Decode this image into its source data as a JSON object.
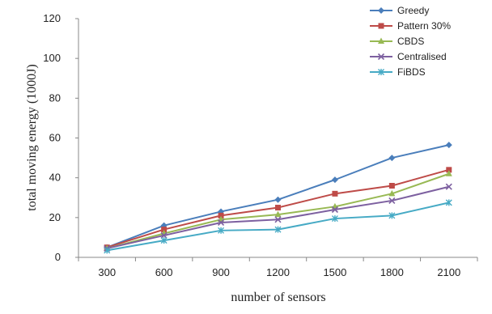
{
  "chart_data": {
    "type": "line",
    "title": "",
    "xlabel": "number of sensors",
    "ylabel": "total moving energy (1000J)",
    "categories": [
      "300",
      "600",
      "900",
      "1200",
      "1500",
      "1800",
      "2100"
    ],
    "ylim": [
      0,
      120
    ],
    "yticks": [
      "0",
      "20",
      "40",
      "60",
      "80",
      "100",
      "120"
    ],
    "grid": false,
    "legend": "top-right",
    "series": [
      {
        "name": "Greedy",
        "color": "#4a7ebb",
        "marker": "diamond",
        "values": [
          5,
          16,
          23,
          29,
          39,
          50,
          56.5
        ]
      },
      {
        "name": "Pattern 30%",
        "color": "#be4b48",
        "marker": "square",
        "values": [
          5,
          14,
          21,
          25,
          32,
          36,
          44
        ]
      },
      {
        "name": "CBDS",
        "color": "#98b954",
        "marker": "triangle",
        "values": [
          4.5,
          12,
          19,
          21.5,
          25.5,
          32,
          42
        ]
      },
      {
        "name": "Centralised",
        "color": "#7d60a0",
        "marker": "x",
        "values": [
          4.5,
          11,
          17.5,
          19,
          24,
          28.5,
          35.5
        ]
      },
      {
        "name": "FiBDS",
        "color": "#46aac5",
        "marker": "star",
        "values": [
          3.5,
          8.5,
          13.5,
          14,
          19.5,
          21,
          27.5
        ]
      }
    ]
  }
}
